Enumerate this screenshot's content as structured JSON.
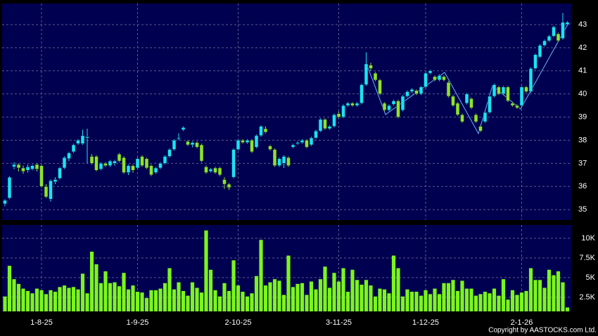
{
  "chart_data": {
    "type": "candlestick",
    "source": "Copyright by AASTOCKS.com Ltd.",
    "categories": [
      null,
      null,
      null,
      null,
      null,
      null,
      null,
      null,
      "1-8-25",
      null,
      null,
      null,
      null,
      null,
      null,
      null,
      null,
      null,
      null,
      null,
      null,
      null,
      null,
      null,
      null,
      null,
      null,
      null,
      null,
      "1-9-25",
      null,
      null,
      null,
      null,
      null,
      null,
      null,
      null,
      null,
      null,
      null,
      null,
      null,
      null,
      null,
      null,
      null,
      null,
      null,
      null,
      null,
      "2-10-25",
      null,
      null,
      null,
      null,
      null,
      null,
      null,
      null,
      null,
      null,
      null,
      null,
      null,
      null,
      null,
      null,
      null,
      null,
      null,
      null,
      null,
      "3-11-25",
      null,
      null,
      null,
      null,
      null,
      null,
      null,
      null,
      null,
      null,
      null,
      null,
      null,
      null,
      null,
      null,
      null,
      null,
      "1-12-25",
      null,
      null,
      null,
      null,
      null,
      null,
      null,
      null,
      null,
      null,
      null,
      null,
      null,
      null,
      null,
      null,
      null,
      null,
      null,
      null,
      "2-1-26",
      null,
      null,
      null,
      null,
      null,
      null,
      null,
      null,
      null,
      null
    ],
    "open": [
      35.25,
      35.5,
      36.85,
      36.95,
      36.8,
      36.7,
      36.75,
      36.95,
      36.9,
      36.0,
      35.45,
      36.2,
      36.35,
      36.8,
      37.2,
      37.5,
      37.85,
      37.85,
      38.1,
      37.3,
      37.3,
      36.75,
      37.0,
      36.9,
      37.0,
      37.4,
      37.25,
      36.6,
      36.9,
      36.8,
      37.3,
      37.2,
      36.9,
      36.6,
      36.8,
      37.0,
      37.3,
      37.6,
      38.05,
      38.45,
      37.95,
      37.8,
      37.9,
      37.8,
      36.85,
      36.65,
      36.8,
      36.8,
      36.3,
      36.1,
      36.4,
      37.6,
      38.0,
      37.9,
      38.0,
      37.7,
      38.2,
      38.5,
      37.75,
      37.6,
      36.9,
      37.0,
      37.25,
      37.7,
      37.85,
      37.9,
      38.0,
      37.8,
      38.1,
      38.4,
      38.9,
      38.5,
      38.6,
      39.15,
      39.0,
      39.5,
      39.6,
      39.5,
      39.6,
      40.4,
      41.25,
      40.9,
      40.6,
      39.6,
      39.3,
      39.55,
      39.7,
      39.3,
      39.9,
      40.1,
      40.15,
      40.0,
      40.3,
      40.9,
      40.75,
      40.6,
      40.75,
      40.5,
      39.9,
      39.6,
      39.1,
      39.6,
      39.8,
      39.1,
      38.6,
      38.8,
      39.2,
      39.9,
      40.3,
      40.0,
      40.3,
      39.6,
      39.5,
      39.5,
      40.3,
      40.1,
      41.1,
      41.6,
      42.1,
      42.3,
      42.5,
      42.6,
      42.4,
      43.0
    ],
    "high": [
      35.45,
      36.45,
      37.05,
      37.0,
      36.9,
      36.95,
      36.95,
      37.0,
      36.95,
      36.1,
      36.3,
      36.4,
      36.85,
      37.3,
      37.5,
      37.85,
      38.05,
      38.45,
      38.5,
      37.4,
      37.35,
      37.05,
      37.05,
      37.15,
      37.15,
      37.45,
      37.3,
      36.95,
      36.95,
      37.25,
      37.35,
      37.25,
      36.95,
      36.85,
      37.05,
      37.35,
      37.65,
      38.05,
      38.3,
      38.6,
      38.0,
      37.95,
      37.95,
      37.85,
      36.9,
      36.8,
      36.85,
      36.85,
      36.4,
      36.15,
      37.65,
      38.05,
      38.05,
      38.05,
      38.05,
      38.25,
      38.65,
      38.6,
      37.8,
      37.65,
      37.25,
      37.35,
      37.3,
      37.85,
      37.95,
      38.05,
      38.05,
      38.15,
      38.45,
      38.95,
      38.95,
      38.65,
      39.15,
      39.25,
      39.55,
      39.65,
      39.65,
      39.65,
      40.45,
      41.8,
      41.35,
      40.95,
      40.65,
      39.65,
      39.55,
      39.75,
      39.75,
      39.95,
      40.15,
      40.25,
      40.2,
      40.35,
      40.95,
      41.05,
      40.8,
      40.85,
      40.8,
      40.55,
      39.95,
      39.65,
      39.15,
      40.05,
      39.85,
      39.15,
      38.65,
      39.25,
      39.95,
      40.45,
      40.35,
      40.35,
      40.35,
      39.65,
      39.55,
      40.35,
      40.35,
      41.15,
      41.75,
      42.15,
      42.35,
      42.55,
      42.95,
      42.65,
      43.5,
      43.15
    ],
    "low": [
      35.15,
      35.45,
      36.75,
      36.65,
      36.55,
      36.6,
      36.7,
      36.65,
      35.95,
      35.5,
      35.35,
      36.1,
      36.3,
      36.75,
      37.1,
      37.45,
      37.8,
      37.8,
      37.0,
      36.95,
      36.65,
      36.7,
      36.85,
      36.85,
      36.9,
      37.05,
      36.55,
      36.5,
      36.6,
      36.75,
      36.85,
      36.75,
      36.45,
      36.55,
      36.75,
      36.95,
      37.25,
      37.55,
      38.0,
      38.4,
      37.75,
      37.7,
      37.65,
      37.05,
      36.55,
      36.6,
      36.55,
      36.45,
      35.9,
      35.85,
      36.35,
      37.55,
      37.85,
      37.85,
      37.45,
      37.65,
      38.15,
      38.3,
      37.55,
      36.85,
      36.85,
      36.8,
      36.85,
      37.65,
      37.8,
      37.85,
      37.65,
      37.75,
      38.05,
      38.35,
      38.45,
      38.45,
      38.55,
      38.95,
      38.95,
      39.45,
      39.45,
      39.45,
      39.55,
      40.35,
      41.0,
      40.55,
      39.95,
      39.25,
      39.25,
      39.5,
      38.95,
      39.25,
      39.85,
      40.05,
      39.95,
      39.95,
      40.25,
      40.85,
      40.55,
      40.55,
      40.55,
      39.85,
      39.45,
      39.05,
      38.75,
      39.55,
      39.35,
      38.75,
      38.35,
      38.75,
      39.15,
      39.85,
      39.95,
      39.95,
      39.65,
      39.45,
      39.35,
      39.45,
      40.05,
      40.05,
      41.05,
      41.55,
      42.05,
      42.25,
      42.45,
      42.25,
      42.35,
      42.95
    ],
    "close": [
      35.4,
      36.4,
      36.95,
      36.8,
      36.65,
      36.85,
      36.9,
      36.75,
      36.0,
      35.55,
      36.25,
      36.3,
      36.8,
      37.25,
      37.45,
      37.8,
      38.0,
      38.2,
      38.15,
      37.0,
      36.7,
      37.0,
      36.9,
      37.1,
      37.1,
      37.1,
      36.6,
      36.9,
      36.7,
      37.2,
      36.9,
      36.8,
      36.5,
      36.8,
      37.0,
      37.3,
      37.6,
      38.0,
      38.1,
      38.55,
      37.8,
      37.9,
      37.7,
      37.1,
      36.6,
      36.75,
      36.6,
      36.5,
      36.1,
      35.95,
      37.6,
      38.0,
      37.9,
      38.0,
      37.5,
      38.2,
      38.6,
      38.35,
      37.6,
      36.9,
      37.2,
      37.3,
      36.9,
      37.8,
      37.9,
      38.0,
      37.7,
      38.1,
      38.4,
      38.9,
      38.5,
      38.6,
      39.1,
      39.0,
      39.5,
      39.6,
      39.5,
      39.6,
      40.4,
      41.3,
      41.1,
      40.6,
      40.0,
      39.3,
      39.5,
      39.7,
      39.0,
      39.9,
      40.1,
      40.2,
      40.0,
      40.3,
      40.9,
      41.0,
      40.6,
      40.8,
      40.6,
      39.9,
      39.5,
      39.1,
      38.8,
      40.0,
      39.4,
      38.8,
      38.4,
      39.2,
      39.9,
      40.4,
      40.0,
      40.3,
      39.7,
      39.5,
      39.4,
      40.3,
      40.1,
      41.1,
      41.7,
      42.1,
      42.3,
      42.5,
      42.9,
      42.3,
      43.1,
      43.1
    ],
    "volume": [
      2600,
      6500,
      4800,
      4200,
      3600,
      3300,
      3000,
      3600,
      3400,
      2900,
      3400,
      3200,
      3800,
      4000,
      3700,
      3800,
      3500,
      5500,
      3000,
      8300,
      6700,
      4300,
      5800,
      4300,
      4400,
      3900,
      5600,
      3500,
      4000,
      3200,
      3100,
      2400,
      3400,
      3400,
      3600,
      4300,
      6200,
      3500,
      4400,
      3300,
      2700,
      4400,
      3700,
      3100,
      11000,
      6000,
      3400,
      2600,
      4300,
      3300,
      7200,
      4000,
      3200,
      2600,
      3000,
      5200,
      9800,
      4000,
      4400,
      4800,
      4600,
      2800,
      7800,
      3800,
      4200,
      4300,
      2800,
      4500,
      3500,
      4800,
      6400,
      3700,
      5600,
      4500,
      6200,
      3200,
      6000,
      4700,
      4100,
      4700,
      4000,
      2600,
      3600,
      3500,
      3000,
      7800,
      6200,
      2600,
      3500,
      3200,
      3200,
      2700,
      3400,
      2900,
      3600,
      2900,
      4300,
      4300,
      4700,
      3300,
      4600,
      3600,
      3600,
      2700,
      2900,
      3200,
      3000,
      3600,
      2700,
      4800,
      2200,
      3400,
      2800,
      3100,
      3300,
      6200,
      4700,
      4700,
      3700,
      6000,
      5300,
      5800,
      4400,
      1200
    ],
    "up_color": "#19e3f5",
    "down_color": "#8ee32a",
    "volume_color": "#7cf51c",
    "ylim": [
      34.55,
      43.91
    ],
    "yticks": [
      35,
      36,
      37,
      38,
      39,
      40,
      41,
      42,
      43
    ],
    "y2lim": [
      700,
      11700
    ],
    "y2ticks": [
      {
        "value": 2500,
        "label": "2.5K"
      },
      {
        "value": 5000,
        "label": "5K"
      },
      {
        "value": 7500,
        "label": "7.5K"
      },
      {
        "value": 10000,
        "label": "10K"
      }
    ],
    "grid": true
  }
}
